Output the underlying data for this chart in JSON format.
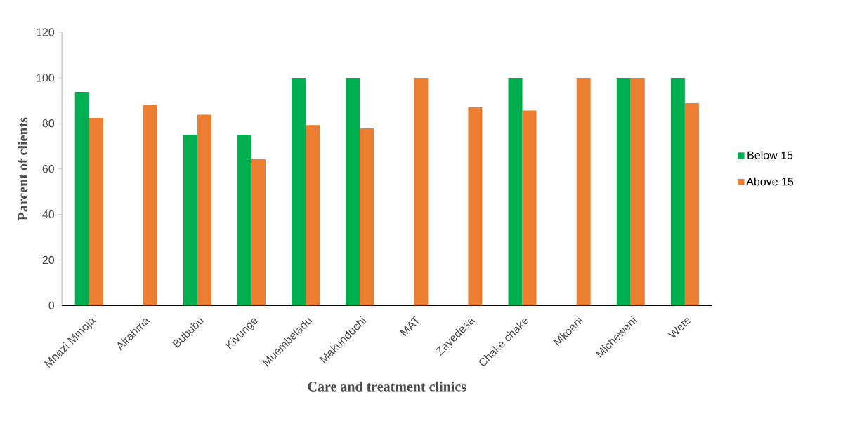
{
  "chart_data": {
    "type": "bar",
    "xlabel": "Care and treatment clinics",
    "ylabel": "Parcent of clients",
    "categories": [
      "Mnazi Mmoja",
      "Alrahma",
      "Bububu",
      "Kivunge",
      "Muembeladu",
      "Makunduchi",
      "MAT",
      "Zayedesa",
      "Chake chake",
      "Mkoani",
      "Micheweni",
      "Wete"
    ],
    "series": [
      {
        "name": "Below 15",
        "color": "#00b050",
        "values": [
          93.8,
          0,
          75,
          75,
          100,
          100,
          0,
          0,
          100,
          0,
          100,
          100
        ]
      },
      {
        "name": "Above 15",
        "color": "#ed7d31",
        "values": [
          82.4,
          88,
          83.8,
          64.2,
          79.2,
          77.8,
          100,
          87,
          85.6,
          100,
          100,
          88.9
        ]
      }
    ],
    "ylim": [
      0,
      120
    ],
    "yticks": [
      0,
      20,
      40,
      60,
      80,
      100,
      120
    ],
    "legend": "right",
    "grid": false
  }
}
